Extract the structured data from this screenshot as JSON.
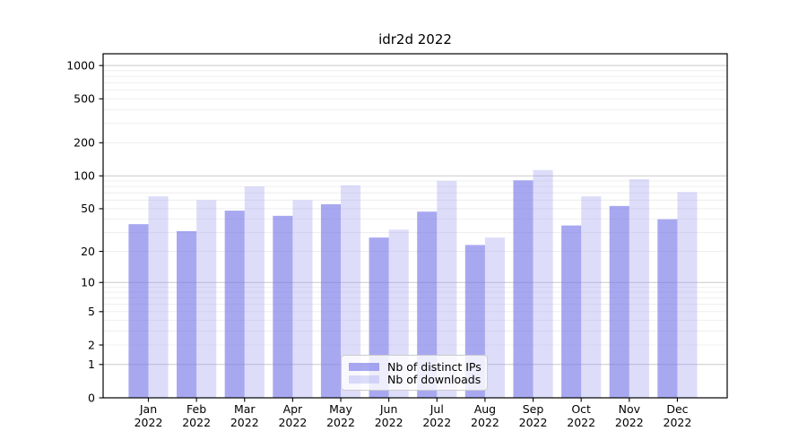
{
  "title": "idr2d 2022",
  "chart_data": {
    "type": "bar",
    "title": "idr2d 2022",
    "categories": [
      "Jan",
      "Feb",
      "Mar",
      "Apr",
      "May",
      "Jun",
      "Jul",
      "Aug",
      "Sep",
      "Oct",
      "Nov",
      "Dec"
    ],
    "year": "2022",
    "series": [
      {
        "name": "Nb of distinct IPs",
        "color": "rgba(122,122,234,0.65)",
        "values": [
          36,
          31,
          48,
          43,
          55,
          27,
          47,
          23,
          91,
          35,
          53,
          40
        ]
      },
      {
        "name": "Nb of downloads",
        "color": "rgba(157,157,240,0.35)",
        "values": [
          65,
          60,
          80,
          60,
          82,
          32,
          90,
          27,
          113,
          65,
          93,
          71
        ]
      }
    ],
    "xlabel": "",
    "ylabel": "",
    "yscale": "log10(1+y)",
    "yticks": [
      0,
      1,
      2,
      5,
      10,
      20,
      50,
      100,
      200,
      500,
      1000
    ],
    "ylim": [
      0,
      1290
    ],
    "grid": {
      "on": true,
      "major": [
        1,
        10,
        100,
        1000
      ],
      "minor": [
        2,
        3,
        4,
        5,
        6,
        7,
        8,
        9,
        20,
        30,
        40,
        50,
        60,
        70,
        80,
        90,
        200,
        300,
        400,
        500,
        600,
        700,
        800,
        900
      ],
      "major_color": "#c9c9c9",
      "minor_color": "#ebebeb"
    },
    "legend": {
      "position": "lower center",
      "frame": true
    },
    "axis_color": "#000000",
    "tick_font_px": 12.5
  }
}
